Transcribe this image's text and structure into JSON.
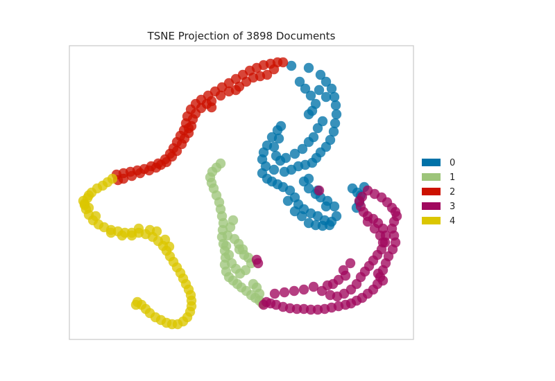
{
  "chart_data": {
    "type": "scatter",
    "title": "TSNE Projection of 3898 Documents",
    "xlabel": "",
    "ylabel": "",
    "grid": false,
    "axes_ticks": false,
    "legend_position": "right",
    "series": [
      {
        "name": "0",
        "color": "#0072a8",
        "points": [
          [
            420,
            95
          ],
          [
            445,
            98
          ],
          [
            462,
            108
          ],
          [
            470,
            118
          ],
          [
            478,
            128
          ],
          [
            482,
            140
          ],
          [
            484,
            152
          ],
          [
            485,
            165
          ],
          [
            483,
            178
          ],
          [
            481,
            190
          ],
          [
            476,
            202
          ],
          [
            470,
            212
          ],
          [
            462,
            220
          ],
          [
            456,
            228
          ],
          [
            450,
            235
          ],
          [
            440,
            238
          ],
          [
            430,
            240
          ],
          [
            420,
            245
          ],
          [
            410,
            248
          ],
          [
            395,
            245
          ],
          [
            383,
            240
          ],
          [
            378,
            230
          ],
          [
            380,
            220
          ],
          [
            385,
            210
          ],
          [
            392,
            198
          ],
          [
            400,
            188
          ],
          [
            405,
            182
          ],
          [
            402,
            200
          ],
          [
            395,
            212
          ],
          [
            398,
            225
          ],
          [
            404,
            232
          ],
          [
            378,
            250
          ],
          [
            385,
            258
          ],
          [
            392,
            262
          ],
          [
            400,
            266
          ],
          [
            408,
            270
          ],
          [
            418,
            275
          ],
          [
            425,
            285
          ],
          [
            430,
            295
          ],
          [
            438,
            302
          ],
          [
            448,
            308
          ],
          [
            458,
            312
          ],
          [
            468,
            318
          ],
          [
            478,
            320
          ],
          [
            485,
            312
          ],
          [
            482,
            298
          ],
          [
            472,
            290
          ],
          [
            462,
            285
          ],
          [
            455,
            280
          ],
          [
            445,
            272
          ],
          [
            438,
            262
          ],
          [
            445,
            258
          ],
          [
            458,
            275
          ],
          [
            470,
            298
          ],
          [
            415,
            290
          ],
          [
            425,
            305
          ],
          [
            435,
            312
          ],
          [
            445,
            322
          ],
          [
            455,
            325
          ],
          [
            465,
            326
          ],
          [
            475,
            325
          ],
          [
            508,
            272
          ],
          [
            515,
            278
          ],
          [
            520,
            282
          ],
          [
            518,
            292
          ],
          [
            514,
            300
          ],
          [
            525,
            270
          ],
          [
            432,
            118
          ],
          [
            440,
            128
          ],
          [
            448,
            138
          ],
          [
            455,
            150
          ],
          [
            450,
            160
          ],
          [
            445,
            165
          ],
          [
            460,
            130
          ],
          [
            470,
            140
          ],
          [
            465,
            175
          ],
          [
            458,
            185
          ],
          [
            452,
            198
          ],
          [
            445,
            205
          ],
          [
            436,
            215
          ],
          [
            425,
            222
          ],
          [
            412,
            228
          ]
        ]
      },
      {
        "name": "1",
        "color": "#9dc57a",
        "points": [
          [
            318,
            236
          ],
          [
            312,
            242
          ],
          [
            306,
            248
          ],
          [
            303,
            256
          ],
          [
            305,
            264
          ],
          [
            308,
            272
          ],
          [
            312,
            282
          ],
          [
            316,
            292
          ],
          [
            318,
            302
          ],
          [
            320,
            312
          ],
          [
            322,
            322
          ],
          [
            321,
            332
          ],
          [
            320,
            342
          ],
          [
            322,
            352
          ],
          [
            324,
            362
          ],
          [
            325,
            372
          ],
          [
            324,
            382
          ],
          [
            326,
            392
          ],
          [
            330,
            400
          ],
          [
            336,
            405
          ],
          [
            342,
            410
          ],
          [
            348,
            415
          ],
          [
            355,
            420
          ],
          [
            362,
            426
          ],
          [
            368,
            430
          ],
          [
            374,
            434
          ],
          [
            378,
            438
          ],
          [
            345,
            360
          ],
          [
            352,
            368
          ],
          [
            358,
            372
          ],
          [
            362,
            380
          ],
          [
            354,
            390
          ],
          [
            346,
            395
          ],
          [
            340,
            388
          ],
          [
            334,
            380
          ],
          [
            330,
            368
          ],
          [
            326,
            355
          ],
          [
            328,
            340
          ],
          [
            332,
            328
          ],
          [
            336,
            318
          ],
          [
            338,
            345
          ],
          [
            344,
            352
          ],
          [
            350,
            360
          ],
          [
            370,
            415
          ],
          [
            374,
            424
          ],
          [
            365,
            410
          ]
        ]
      },
      {
        "name": "2",
        "color": "#cc1100",
        "points": [
          [
            168,
            252
          ],
          [
            178,
            250
          ],
          [
            188,
            248
          ],
          [
            198,
            246
          ],
          [
            208,
            244
          ],
          [
            218,
            240
          ],
          [
            228,
            236
          ],
          [
            238,
            230
          ],
          [
            245,
            222
          ],
          [
            250,
            214
          ],
          [
            255,
            205
          ],
          [
            260,
            196
          ],
          [
            265,
            188
          ],
          [
            268,
            178
          ],
          [
            270,
            168
          ],
          [
            275,
            158
          ],
          [
            282,
            150
          ],
          [
            290,
            144
          ],
          [
            300,
            138
          ],
          [
            310,
            132
          ],
          [
            320,
            126
          ],
          [
            330,
            120
          ],
          [
            340,
            114
          ],
          [
            350,
            108
          ],
          [
            360,
            102
          ],
          [
            370,
            98
          ],
          [
            380,
            94
          ],
          [
            390,
            92
          ],
          [
            400,
            90
          ],
          [
            408,
            90
          ],
          [
            395,
            100
          ],
          [
            385,
            108
          ],
          [
            375,
            110
          ],
          [
            365,
            112
          ],
          [
            355,
            118
          ],
          [
            345,
            125
          ],
          [
            340,
            130
          ],
          [
            330,
            132
          ],
          [
            318,
            138
          ],
          [
            305,
            146
          ],
          [
            298,
            150
          ],
          [
            290,
            156
          ],
          [
            282,
            164
          ],
          [
            278,
            172
          ],
          [
            276,
            182
          ],
          [
            272,
            192
          ],
          [
            266,
            200
          ],
          [
            262,
            208
          ],
          [
            255,
            218
          ],
          [
            248,
            226
          ],
          [
            240,
            234
          ],
          [
            232,
            238
          ],
          [
            225,
            242
          ],
          [
            215,
            246
          ],
          [
            202,
            250
          ],
          [
            190,
            254
          ],
          [
            178,
            258
          ],
          [
            170,
            260
          ],
          [
            305,
            155
          ],
          [
            272,
            185
          ]
        ]
      },
      {
        "name": "3",
        "color": "#a0085e",
        "points": [
          [
            460,
            275
          ],
          [
            530,
            275
          ],
          [
            540,
            280
          ],
          [
            550,
            285
          ],
          [
            558,
            292
          ],
          [
            565,
            300
          ],
          [
            570,
            306
          ],
          [
            572,
            312
          ],
          [
            568,
            320
          ],
          [
            565,
            330
          ],
          [
            568,
            340
          ],
          [
            570,
            350
          ],
          [
            566,
            360
          ],
          [
            560,
            370
          ],
          [
            556,
            380
          ],
          [
            552,
            390
          ],
          [
            548,
            400
          ],
          [
            544,
            410
          ],
          [
            538,
            418
          ],
          [
            530,
            424
          ],
          [
            522,
            430
          ],
          [
            514,
            434
          ],
          [
            506,
            438
          ],
          [
            498,
            440
          ],
          [
            488,
            442
          ],
          [
            478,
            444
          ],
          [
            468,
            446
          ],
          [
            458,
            447
          ],
          [
            448,
            447
          ],
          [
            438,
            446
          ],
          [
            428,
            446
          ],
          [
            418,
            445
          ],
          [
            408,
            443
          ],
          [
            398,
            440
          ],
          [
            390,
            438
          ],
          [
            384,
            436
          ],
          [
            380,
            440
          ],
          [
            396,
            424
          ],
          [
            410,
            422
          ],
          [
            424,
            420
          ],
          [
            438,
            418
          ],
          [
            452,
            414
          ],
          [
            464,
            420
          ],
          [
            476,
            426
          ],
          [
            486,
            428
          ],
          [
            496,
            424
          ],
          [
            506,
            418
          ],
          [
            514,
            410
          ],
          [
            520,
            400
          ],
          [
            526,
            392
          ],
          [
            532,
            384
          ],
          [
            538,
            376
          ],
          [
            544,
            368
          ],
          [
            550,
            360
          ],
          [
            555,
            350
          ],
          [
            556,
            340
          ],
          [
            552,
            330
          ],
          [
            545,
            322
          ],
          [
            538,
            316
          ],
          [
            530,
            312
          ],
          [
            524,
            306
          ],
          [
            520,
            298
          ],
          [
            518,
            290
          ],
          [
            522,
            284
          ],
          [
            530,
            320
          ],
          [
            540,
            330
          ],
          [
            548,
            340
          ],
          [
            552,
            350
          ],
          [
            495,
            390
          ],
          [
            505,
            380
          ],
          [
            498,
            398
          ],
          [
            488,
            404
          ],
          [
            480,
            410
          ],
          [
            472,
            412
          ],
          [
            545,
            395
          ],
          [
            552,
            405
          ],
          [
            370,
            375
          ],
          [
            372,
            380
          ]
        ]
      },
      {
        "name": "4",
        "color": "#dbc600",
        "points": [
          [
            162,
            258
          ],
          [
            155,
            263
          ],
          [
            148,
            268
          ],
          [
            140,
            272
          ],
          [
            132,
            278
          ],
          [
            126,
            286
          ],
          [
            122,
            294
          ],
          [
            124,
            302
          ],
          [
            128,
            310
          ],
          [
            134,
            318
          ],
          [
            142,
            324
          ],
          [
            150,
            328
          ],
          [
            160,
            332
          ],
          [
            170,
            334
          ],
          [
            180,
            336
          ],
          [
            190,
            336
          ],
          [
            200,
            336
          ],
          [
            210,
            338
          ],
          [
            220,
            342
          ],
          [
            228,
            348
          ],
          [
            235,
            355
          ],
          [
            240,
            362
          ],
          [
            245,
            370
          ],
          [
            250,
            378
          ],
          [
            255,
            386
          ],
          [
            260,
            394
          ],
          [
            264,
            402
          ],
          [
            268,
            410
          ],
          [
            272,
            418
          ],
          [
            275,
            426
          ],
          [
            276,
            434
          ],
          [
            276,
            442
          ],
          [
            274,
            450
          ],
          [
            270,
            458
          ],
          [
            264,
            464
          ],
          [
            256,
            468
          ],
          [
            248,
            468
          ],
          [
            240,
            466
          ],
          [
            232,
            462
          ],
          [
            224,
            458
          ],
          [
            216,
            452
          ],
          [
            210,
            446
          ],
          [
            204,
            440
          ],
          [
            198,
            436
          ],
          [
            196,
            440
          ],
          [
            238,
            346
          ],
          [
            244,
            356
          ],
          [
            226,
            334
          ],
          [
            216,
            332
          ],
          [
            200,
            330
          ],
          [
            190,
            340
          ],
          [
            176,
            340
          ],
          [
            160,
            336
          ],
          [
            138,
            312
          ],
          [
            128,
            300
          ],
          [
            122,
            296
          ],
          [
            120,
            290
          ],
          [
            128,
            282
          ]
        ]
      }
    ]
  }
}
